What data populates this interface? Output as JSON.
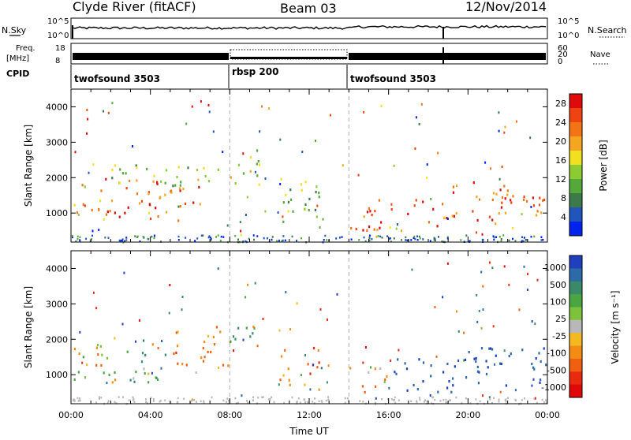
{
  "header": {
    "station": "Clyde River (fitACF)",
    "beam": "Beam 03",
    "date": "12/Nov/2014"
  },
  "summary_panels": {
    "nsky_label": "N.Sky",
    "nsky_ticks": [
      "10^5",
      "10^0"
    ],
    "nsearch_label": "N.Search",
    "nsearch_ticks": [
      "10^5",
      "10^0"
    ],
    "freq_label": "Freq.",
    "freq_unit": "[MHz]",
    "freq_ticks": [
      "18",
      "8"
    ],
    "nave_label": "Nave",
    "nave_ticks": [
      "60",
      "20",
      "0"
    ],
    "cpid_label": "CPID"
  },
  "chart_data": [
    {
      "type": "heatmap",
      "name": "power",
      "ylabel": "Slant Range [km]",
      "xlabel": "Time UT",
      "xlim": [
        0,
        24
      ],
      "ylim": [
        180,
        4500
      ],
      "x_tick_labels": [
        "00:00",
        "04:00",
        "08:00",
        "12:00",
        "16:00",
        "20:00",
        "00:00"
      ],
      "y_ticks": [
        1000,
        2000,
        3000,
        4000
      ],
      "colorbar": {
        "label": "Power [dB]",
        "ticks": [
          "4",
          "8",
          "12",
          "16",
          "20",
          "24",
          "28"
        ],
        "colors": [
          "#0022ee",
          "#2255bb",
          "#3d7a4a",
          "#55a83a",
          "#8ccc33",
          "#f2e020",
          "#f4a620",
          "#f27414",
          "#ee4412",
          "#e00a0a"
        ]
      },
      "scatter_regions": [
        {
          "t_start": 0.1,
          "t_end": 1.5,
          "r_min": 800,
          "r_max": 1900,
          "value": 20
        },
        {
          "t_start": 1.5,
          "t_end": 6.5,
          "r_min": 800,
          "r_max": 2000,
          "value": 24
        },
        {
          "t_start": 2.0,
          "t_end": 7.8,
          "r_min": 1800,
          "r_max": 2400,
          "value": 12
        },
        {
          "t_start": 8.0,
          "t_end": 9.5,
          "r_min": 1700,
          "r_max": 2800,
          "value": 14
        },
        {
          "t_start": 10.5,
          "t_end": 12.5,
          "r_min": 600,
          "r_max": 2000,
          "value": 12
        },
        {
          "t_start": 14.0,
          "t_end": 19.0,
          "r_min": 500,
          "r_max": 1500,
          "value": 26
        },
        {
          "t_start": 19.0,
          "t_end": 24.0,
          "r_min": 700,
          "r_max": 1900,
          "value": 24
        }
      ],
      "mode_boundaries_h": [
        8.0,
        14.0
      ]
    },
    {
      "type": "heatmap",
      "name": "velocity",
      "ylabel": "Slant Range [km]",
      "xlabel": "Time UT",
      "xlim": [
        0,
        24
      ],
      "ylim": [
        180,
        4500
      ],
      "x_tick_labels": [
        "00:00",
        "04:00",
        "08:00",
        "12:00",
        "16:00",
        "20:00",
        "00:00"
      ],
      "y_ticks": [
        1000,
        2000,
        3000,
        4000
      ],
      "colorbar": {
        "label": "Velocity [m s⁻¹]",
        "ticks": [
          "1000",
          "500",
          "100",
          "25",
          "-25",
          "-100",
          "-500",
          "-1000"
        ],
        "colors": [
          "#1f3fbf",
          "#2d6aa8",
          "#3a8a6a",
          "#4aa640",
          "#7cc23a",
          "#b8b8b8",
          "#f4b820",
          "#f48c14",
          "#f06010",
          "#e82a0e",
          "#e00808"
        ]
      },
      "scatter_regions": [
        {
          "t_start": 0.1,
          "t_end": 2.5,
          "r_min": 800,
          "r_max": 1900,
          "value": -100
        },
        {
          "t_start": 2.5,
          "t_end": 5.0,
          "r_min": 800,
          "r_max": 2000,
          "value": 150
        },
        {
          "t_start": 5.0,
          "t_end": 8.0,
          "r_min": 1200,
          "r_max": 2400,
          "value": -200
        },
        {
          "t_start": 8.0,
          "t_end": 9.5,
          "r_min": 1600,
          "r_max": 2400,
          "value": 100
        },
        {
          "t_start": 10.5,
          "t_end": 12.5,
          "r_min": 600,
          "r_max": 1900,
          "value": -300
        },
        {
          "t_start": 14.0,
          "t_end": 16.0,
          "r_min": 500,
          "r_max": 1400,
          "value": -150
        },
        {
          "t_start": 16.0,
          "t_end": 20.0,
          "r_min": 500,
          "r_max": 1500,
          "value": 700
        },
        {
          "t_start": 20.0,
          "t_end": 24.0,
          "r_min": 700,
          "r_max": 1800,
          "value": 600
        }
      ],
      "mode_boundaries_h": [
        8.0,
        14.0
      ]
    }
  ],
  "cpid_segments": [
    {
      "label": "twofsound 3503",
      "t_start": 0.0
    },
    {
      "label": "rbsp 200",
      "t_start": 8.0
    },
    {
      "label": "twofsound 3503",
      "t_start": 14.0
    }
  ]
}
